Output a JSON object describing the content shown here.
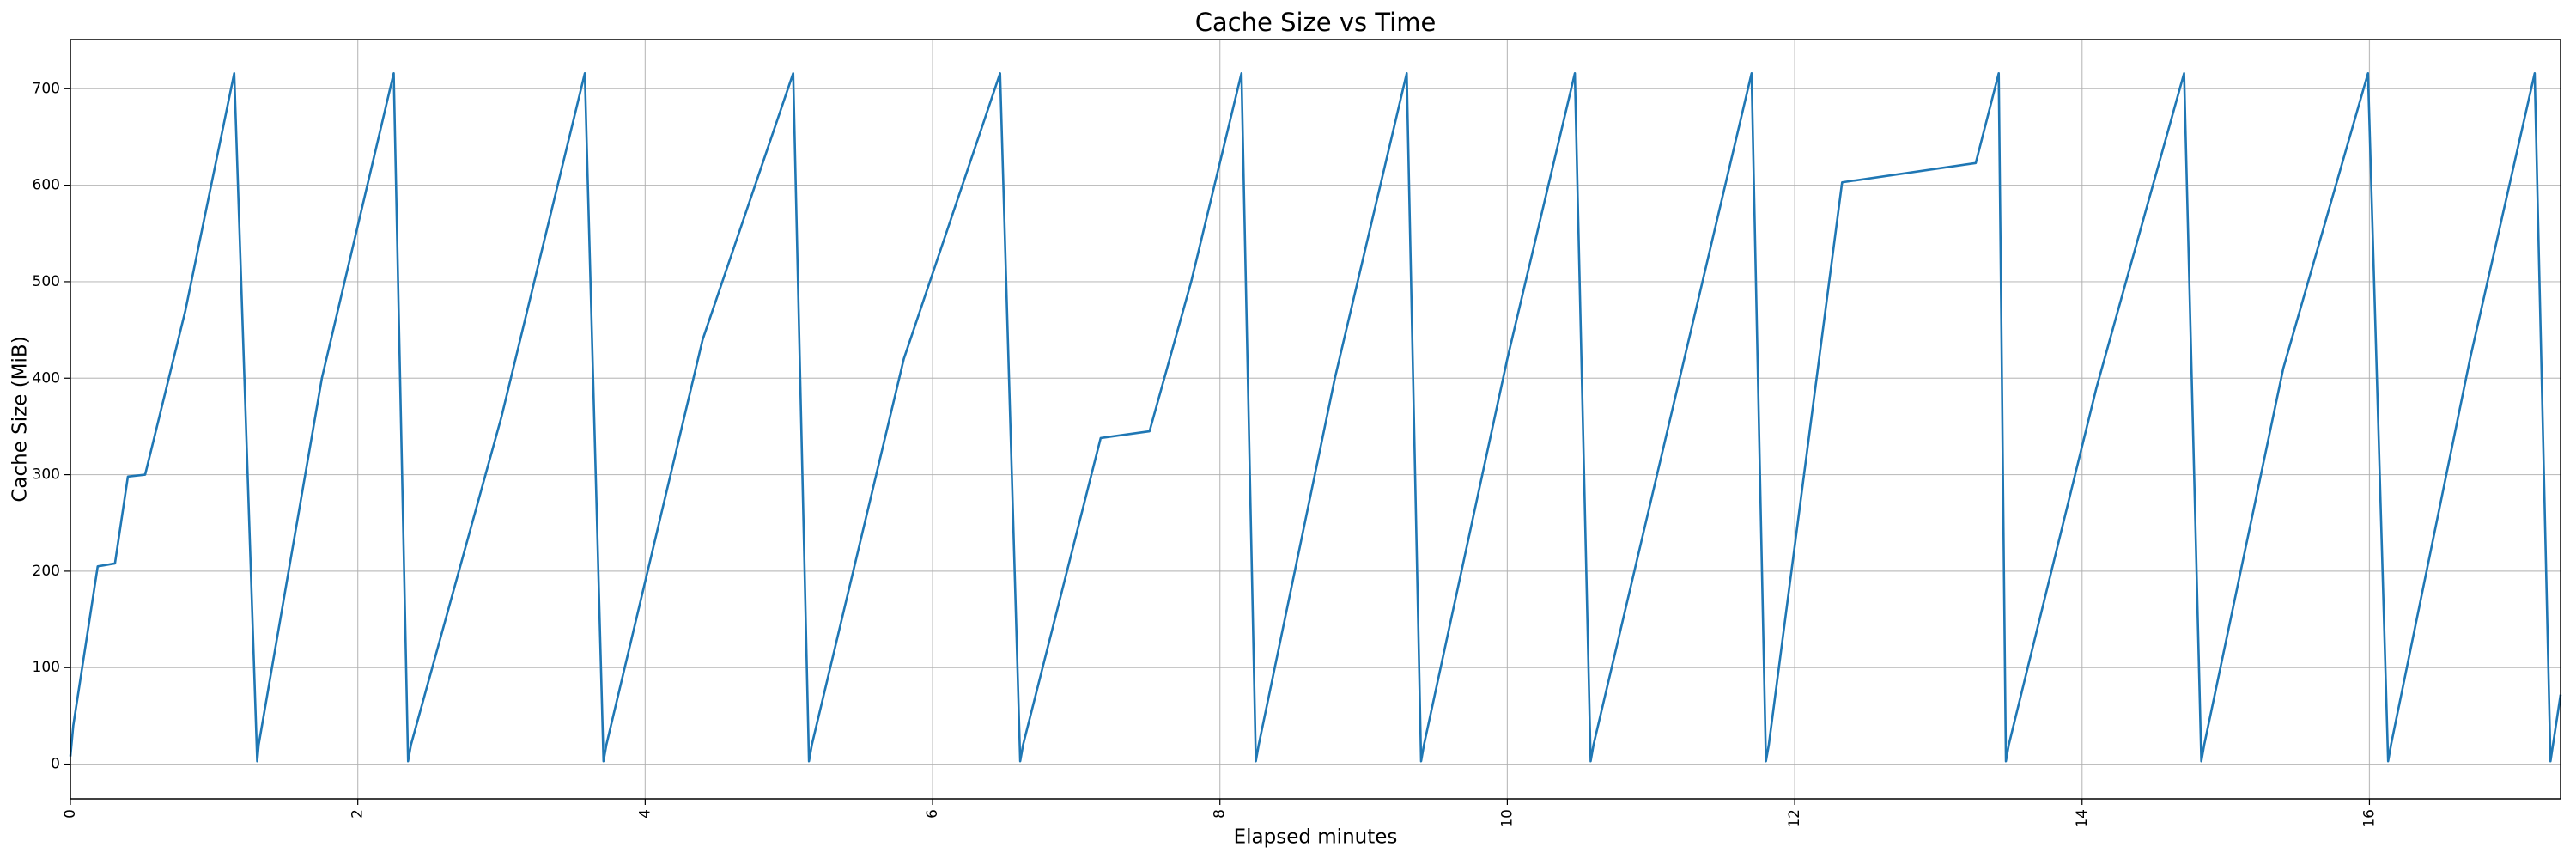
{
  "chart_data": {
    "type": "line",
    "title": "Cache Size vs Time",
    "x_label": "Elapsed minutes",
    "y_label": "Cache Size (MiB)",
    "x": [
      0,
      0.02,
      0.19,
      0.31,
      0.4,
      0.52,
      0.8,
      1.14,
      1.3,
      1.31,
      1.75,
      2.25,
      2.35,
      2.37,
      3.0,
      3.58,
      3.71,
      3.73,
      4.4,
      5.03,
      5.14,
      5.16,
      5.8,
      6.47,
      6.61,
      6.63,
      7.17,
      7.51,
      7.8,
      8.15,
      8.25,
      8.27,
      8.8,
      9.3,
      9.4,
      9.42,
      10.0,
      10.47,
      10.58,
      10.6,
      11.2,
      11.7,
      11.8,
      11.82,
      12.33,
      13.26,
      13.42,
      13.47,
      13.49,
      14.1,
      14.71,
      14.83,
      14.85,
      15.4,
      15.99,
      16.13,
      16.15,
      16.7,
      17.15,
      17.26,
      17.33
    ],
    "values": [
      8,
      40,
      205,
      208,
      298,
      300,
      470,
      716,
      3,
      20,
      400,
      716,
      3,
      20,
      360,
      716,
      3,
      20,
      440,
      716,
      3,
      20,
      420,
      716,
      3,
      20,
      338,
      345,
      500,
      716,
      3,
      20,
      400,
      716,
      3,
      20,
      420,
      716,
      3,
      20,
      400,
      716,
      3,
      20,
      603,
      623,
      716,
      3,
      20,
      390,
      716,
      3,
      20,
      410,
      716,
      3,
      20,
      420,
      716,
      3,
      72
    ],
    "color": "#1f77b4",
    "xlim": [
      0,
      17.33
    ],
    "xticks": [
      0,
      2,
      4,
      6,
      8,
      10,
      12,
      14,
      16
    ],
    "ylim": [
      -36,
      751
    ],
    "yticks": [
      0,
      100,
      200,
      300,
      400,
      500,
      600,
      700
    ],
    "grid": true
  }
}
